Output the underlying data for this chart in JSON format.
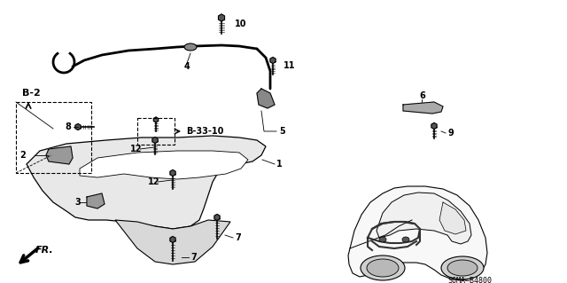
{
  "bg_color": "#ffffff",
  "line_color": "#000000",
  "diagram_code": "S6MA–B4800",
  "fr_label": "FR.",
  "ref_b2": "B-2",
  "ref_b3310": "B-33-10",
  "figsize": [
    6.4,
    3.19
  ],
  "dpi": 100
}
